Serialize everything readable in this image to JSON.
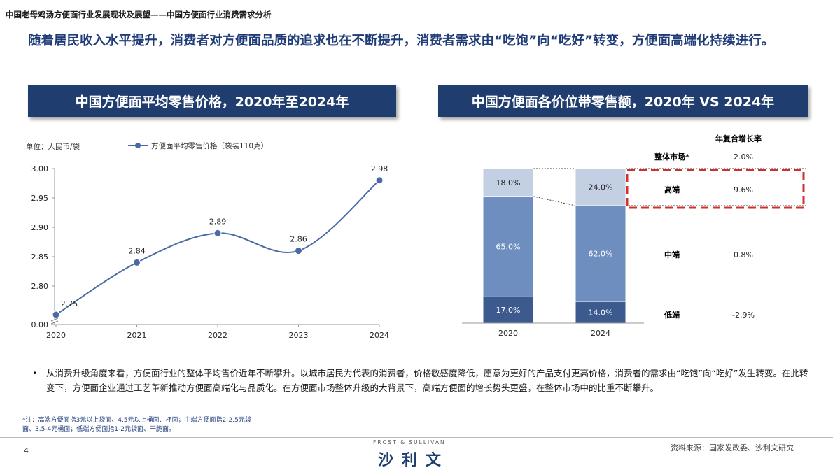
{
  "header": {
    "title": "中国老母鸡汤方便面行业发展现状及展望——中国方便面行业消费需求分析",
    "headline": "随着居民收入水平提升，消费者对方便面品质的追求也在不断提升，消费者需求由“吃饱”向“吃好”转变，方便面高端化持续进行。"
  },
  "left_chart": {
    "banner": "中国方便面平均零售价格，2020年至2024年",
    "unit_label": "单位：人民币/袋",
    "legend_label": "方便面平均零售价格（袋装110克）"
  },
  "right_chart": {
    "banner": "中国方便面各价位带零售额，2020年 VS 2024年",
    "cagr_header": "年复合增长率",
    "rows": [
      {
        "label": "整体市场*",
        "cagr": "2.0%"
      },
      {
        "label": "高端",
        "cagr": "9.6%"
      },
      {
        "label": "中端",
        "cagr": "0.8%"
      },
      {
        "label": "低端",
        "cagr": "-2.9%"
      }
    ]
  },
  "chart_data": [
    {
      "type": "line",
      "x": [
        "2020",
        "2021",
        "2022",
        "2023",
        "2024"
      ],
      "series": [
        {
          "name": "方便面平均零售价格（袋装110克）",
          "values": [
            2.75,
            2.84,
            2.89,
            2.86,
            2.98
          ]
        }
      ],
      "ylim": [
        2.8,
        3.0
      ],
      "yticks": [
        "0.00",
        "2.80",
        "2.85",
        "2.90",
        "2.95",
        "3.00"
      ],
      "ylabel": "单位：人民币/袋",
      "axis_break": true,
      "data_labels": [
        "2.75",
        "2.84",
        "2.89",
        "2.86",
        "2.98"
      ],
      "color": "#4a6aa6",
      "grid": false
    },
    {
      "type": "bar",
      "stacked": true,
      "percent": true,
      "categories": [
        "2020",
        "2024"
      ],
      "series": [
        {
          "name": "低端",
          "values": [
            17.0,
            14.0
          ],
          "labels": [
            "17.0%",
            "14.0%"
          ],
          "color": "#3d5a8f"
        },
        {
          "name": "中端",
          "values": [
            65.0,
            62.0
          ],
          "labels": [
            "65.0%",
            "62.0%"
          ],
          "color": "#6e8ebf"
        },
        {
          "name": "高端",
          "values": [
            18.0,
            24.0
          ],
          "labels": [
            "18.0%",
            "24.0%"
          ],
          "color": "#c3cfe3"
        }
      ]
    }
  ],
  "body": {
    "bullet": "从消费升级角度来看，方便面行业的整体平均售价近年不断攀升。以城市居民为代表的消费者，价格敏感度降低，愿意为更好的产品支付更高价格，消费者的需求由“吃饱”向“吃好”发生转变。在此转变下，方便面企业通过工艺革新推动方便面高端化与品质化。在方便面市场整体升级的大背景下，高端方便面的增长势头更盛，在整体市场中的比重不断攀升。"
  },
  "footer": {
    "footnote": "*注：高端方便面指3元以上袋面、4.5元以上桶面、杯面；中端方便面指2-2.5元袋面、3.5-4元桶面；低端方便面指1-2元袋面、干脆面。",
    "page_number": "4",
    "brand_en": "FROST & SULLIVAN",
    "brand_cn": "沙利文",
    "source": "资料来源：国家发改委、沙利文研究"
  }
}
